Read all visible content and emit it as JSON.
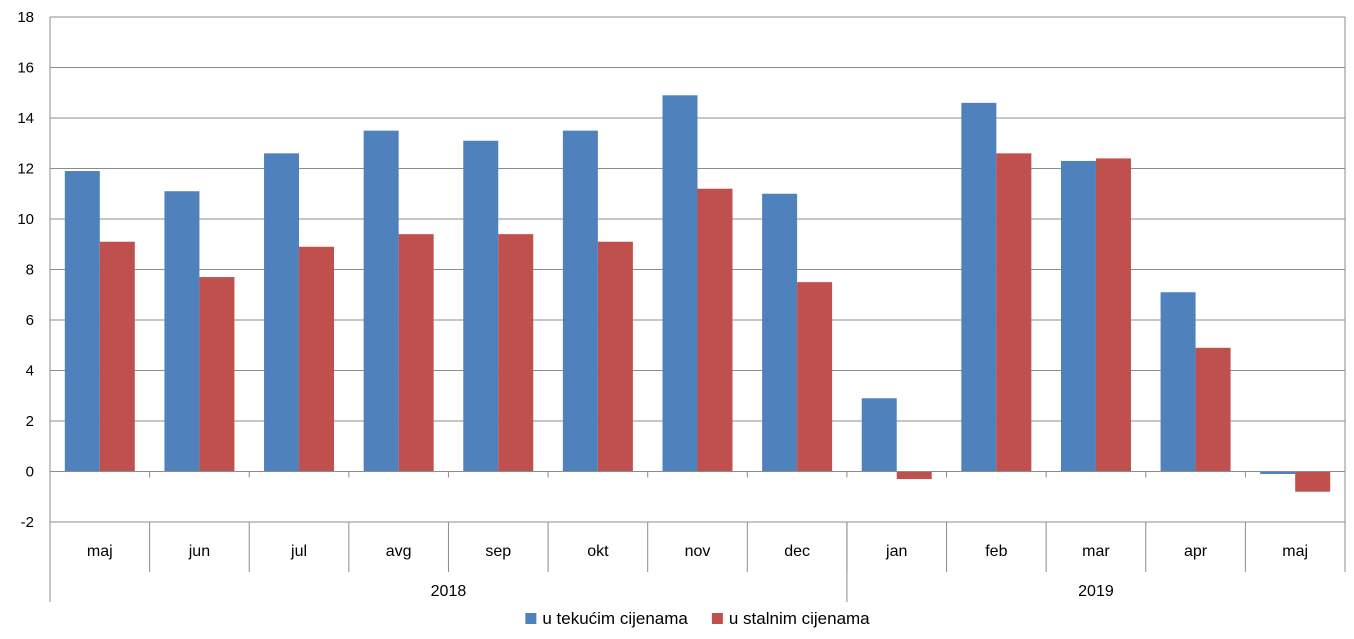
{
  "chart_data": {
    "type": "bar",
    "categories": [
      "maj",
      "jun",
      "jul",
      "avg",
      "sep",
      "okt",
      "nov",
      "dec",
      "jan",
      "feb",
      "mar",
      "apr",
      "maj"
    ],
    "groups": [
      {
        "label": "2018",
        "count": 8
      },
      {
        "label": "2019",
        "count": 5
      }
    ],
    "series": [
      {
        "name": "u tekućim cijenama",
        "color": "#4f81bd",
        "values": [
          11.9,
          11.1,
          12.6,
          13.5,
          13.1,
          13.5,
          14.9,
          11.0,
          2.9,
          14.6,
          12.3,
          7.1,
          -0.1
        ]
      },
      {
        "name": "u stalnim cijenama",
        "color": "#c0504d",
        "values": [
          9.1,
          7.7,
          8.9,
          9.4,
          9.4,
          9.1,
          11.2,
          7.5,
          -0.3,
          12.6,
          12.4,
          4.9,
          -0.8
        ]
      }
    ],
    "ylim": [
      -2,
      18
    ],
    "yticks": [
      -2,
      0,
      2,
      4,
      6,
      8,
      10,
      12,
      14,
      16,
      18
    ],
    "grid": true,
    "legend_position": "bottom-center",
    "title": "",
    "xlabel": "",
    "ylabel": ""
  }
}
